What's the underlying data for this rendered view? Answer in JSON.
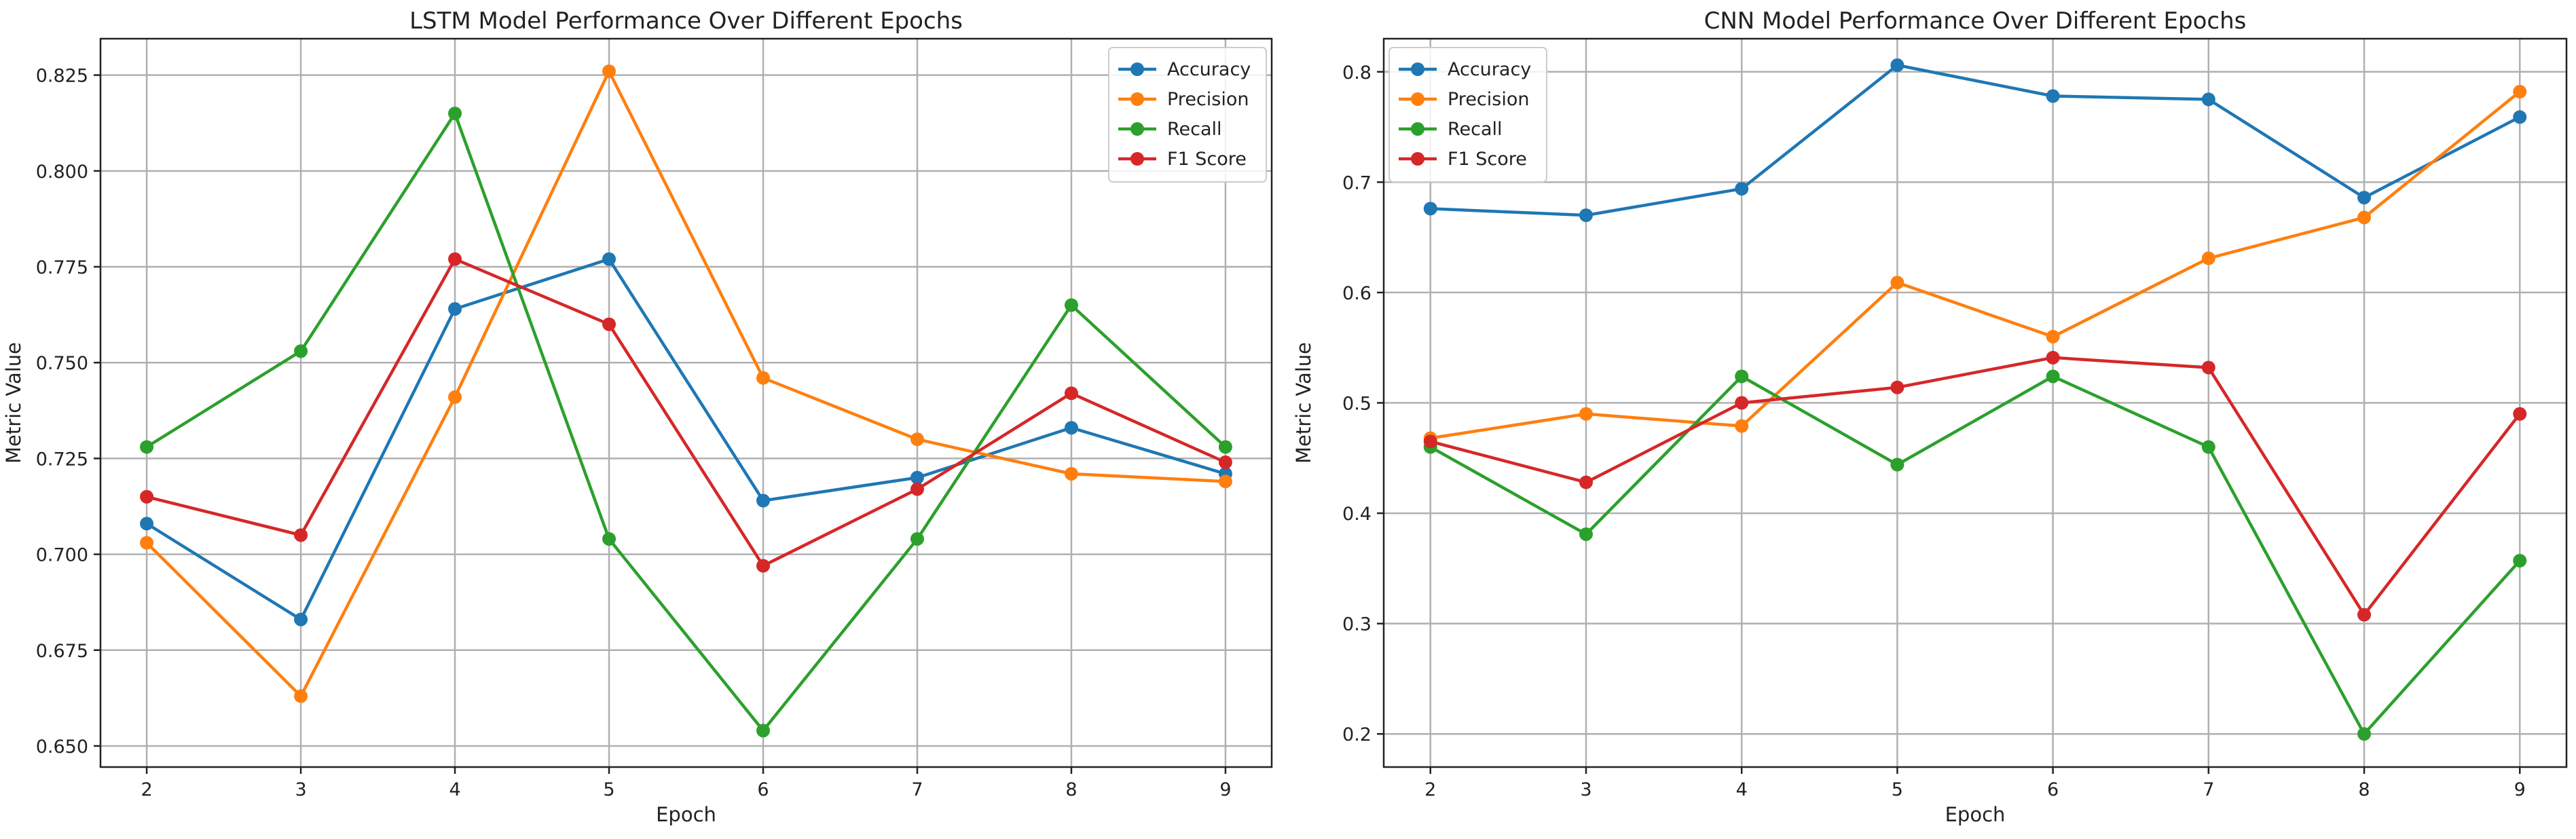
{
  "chart_data": [
    {
      "type": "line",
      "title": "LSTM Model Performance Over Different Epochs",
      "xlabel": "Epoch",
      "ylabel": "Metric Value",
      "x": [
        2,
        3,
        4,
        5,
        6,
        7,
        8,
        9
      ],
      "xlim": [
        1.7,
        9.3
      ],
      "ylim": [
        0.6445,
        0.8345
      ],
      "xticks": [
        2,
        3,
        4,
        5,
        6,
        7,
        8,
        9
      ],
      "yticks": [
        0.65,
        0.675,
        0.7,
        0.725,
        0.75,
        0.775,
        0.8,
        0.825
      ],
      "ytick_labels": [
        "0.650",
        "0.675",
        "0.700",
        "0.725",
        "0.750",
        "0.775",
        "0.800",
        "0.825"
      ],
      "grid": true,
      "legend_position": "top-right",
      "series": [
        {
          "name": "Accuracy",
          "color": "#1f77b4",
          "values": [
            0.708,
            0.683,
            0.764,
            0.777,
            0.714,
            0.72,
            0.733,
            0.721
          ]
        },
        {
          "name": "Precision",
          "color": "#ff7f0e",
          "values": [
            0.703,
            0.663,
            0.741,
            0.826,
            0.746,
            0.73,
            0.721,
            0.719
          ]
        },
        {
          "name": "Recall",
          "color": "#2ca02c",
          "values": [
            0.728,
            0.753,
            0.815,
            0.704,
            0.654,
            0.704,
            0.765,
            0.728
          ]
        },
        {
          "name": "F1 Score",
          "color": "#d62728",
          "values": [
            0.715,
            0.705,
            0.777,
            0.76,
            0.697,
            0.717,
            0.742,
            0.724
          ]
        }
      ]
    },
    {
      "type": "line",
      "title": "CNN Model Performance Over Different Epochs",
      "xlabel": "Epoch",
      "ylabel": "Metric Value",
      "x": [
        2,
        3,
        4,
        5,
        6,
        7,
        8,
        9
      ],
      "xlim": [
        1.7,
        9.3
      ],
      "ylim": [
        0.17,
        0.83
      ],
      "xticks": [
        2,
        3,
        4,
        5,
        6,
        7,
        8,
        9
      ],
      "yticks": [
        0.2,
        0.3,
        0.4,
        0.5,
        0.6,
        0.7,
        0.8
      ],
      "ytick_labels": [
        "0.2",
        "0.3",
        "0.4",
        "0.5",
        "0.6",
        "0.7",
        "0.8"
      ],
      "grid": true,
      "legend_position": "top-left",
      "series": [
        {
          "name": "Accuracy",
          "color": "#1f77b4",
          "values": [
            0.676,
            0.67,
            0.694,
            0.806,
            0.778,
            0.775,
            0.686,
            0.759
          ]
        },
        {
          "name": "Precision",
          "color": "#ff7f0e",
          "values": [
            0.468,
            0.49,
            0.479,
            0.609,
            0.56,
            0.631,
            0.668,
            0.782
          ]
        },
        {
          "name": "Recall",
          "color": "#2ca02c",
          "values": [
            0.46,
            0.381,
            0.524,
            0.444,
            0.524,
            0.46,
            0.2,
            0.357
          ]
        },
        {
          "name": "F1 Score",
          "color": "#d62728",
          "values": [
            0.465,
            0.428,
            0.5,
            0.514,
            0.541,
            0.532,
            0.308,
            0.49
          ]
        }
      ]
    }
  ]
}
